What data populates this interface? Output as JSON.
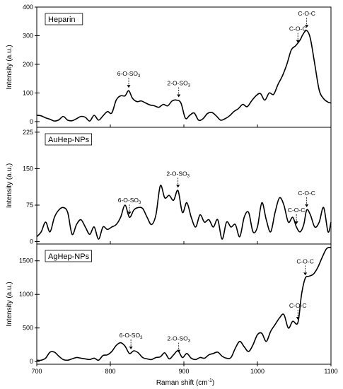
{
  "chart_data": {
    "type": "line",
    "xlabel_main": "Raman shift (cm",
    "xlabel_sup": "-1",
    "xlabel_end": ")",
    "xlim": [
      700,
      1100
    ],
    "xticks": [
      700,
      800,
      900,
      1000,
      1100
    ],
    "panels": [
      {
        "name": "Heparin",
        "ylabel": "Intensity (a.u.)",
        "ylim": [
          -20,
          400
        ],
        "yticks": [
          0,
          100,
          200,
          300,
          400
        ],
        "annotations": [
          {
            "main": "6-O-SO",
            "sub": "3",
            "x": 825,
            "y": 108
          },
          {
            "main": "2-O-SO",
            "sub": "3",
            "x": 893,
            "y": 75
          },
          {
            "main": "C-O-C",
            "sub": "",
            "x": 1055,
            "y": 265
          },
          {
            "main": "C-O-C",
            "sub": "",
            "x": 1067,
            "y": 318
          }
        ],
        "x": [
          700,
          706,
          712,
          718,
          724,
          730,
          736,
          742,
          748,
          754,
          760,
          766,
          772,
          778,
          784,
          790,
          796,
          802,
          808,
          814,
          820,
          825,
          830,
          836,
          842,
          848,
          854,
          860,
          866,
          872,
          878,
          884,
          890,
          896,
          902,
          908,
          914,
          920,
          926,
          932,
          938,
          944,
          950,
          956,
          962,
          968,
          974,
          980,
          986,
          992,
          998,
          1004,
          1010,
          1016,
          1022,
          1028,
          1034,
          1040,
          1046,
          1052,
          1058,
          1062,
          1067,
          1072,
          1078,
          1084,
          1090,
          1096,
          1100
        ],
        "y": [
          22,
          20,
          13,
          8,
          2,
          6,
          18,
          5,
          3,
          10,
          18,
          15,
          2,
          22,
          5,
          20,
          35,
          30,
          75,
          90,
          90,
          108,
          82,
          70,
          72,
          65,
          58,
          55,
          50,
          60,
          55,
          72,
          75,
          65,
          12,
          22,
          30,
          5,
          10,
          28,
          32,
          20,
          5,
          10,
          20,
          35,
          45,
          60,
          52,
          72,
          90,
          98,
          75,
          100,
          95,
          130,
          160,
          200,
          250,
          265,
          285,
          305,
          318,
          290,
          200,
          110,
          80,
          68,
          65
        ]
      },
      {
        "name": "AuHep-NPs",
        "ylabel": "Intensity (a.u.)",
        "ylim": [
          -5,
          235
        ],
        "yticks": [
          0,
          75,
          150,
          225
        ],
        "annotations": [
          {
            "main": "6-O-SO",
            "sub": "3",
            "x": 826,
            "y": 50
          },
          {
            "main": "2-O-SO",
            "sub": "3",
            "x": 892,
            "y": 105
          },
          {
            "main": "C-O-C",
            "sub": "",
            "x": 1053,
            "y": 30
          },
          {
            "main": "C-O-C",
            "sub": "",
            "x": 1067,
            "y": 65
          }
        ],
        "x": [
          700,
          706,
          712,
          718,
          724,
          730,
          736,
          742,
          748,
          754,
          760,
          766,
          772,
          778,
          784,
          790,
          796,
          802,
          808,
          814,
          820,
          826,
          832,
          838,
          844,
          850,
          856,
          862,
          868,
          874,
          880,
          886,
          892,
          898,
          904,
          910,
          916,
          922,
          928,
          934,
          940,
          946,
          952,
          958,
          964,
          970,
          976,
          982,
          988,
          994,
          1000,
          1006,
          1012,
          1018,
          1024,
          1030,
          1036,
          1042,
          1048,
          1053,
          1058,
          1063,
          1067,
          1072,
          1078,
          1084,
          1090,
          1096,
          1100
        ],
        "y": [
          10,
          20,
          40,
          20,
          50,
          65,
          70,
          60,
          15,
          35,
          45,
          30,
          15,
          30,
          5,
          30,
          25,
          30,
          35,
          50,
          75,
          50,
          65,
          70,
          68,
          50,
          35,
          55,
          115,
          90,
          95,
          85,
          105,
          60,
          80,
          50,
          30,
          55,
          40,
          45,
          30,
          45,
          5,
          40,
          30,
          35,
          10,
          50,
          60,
          20,
          30,
          80,
          45,
          20,
          60,
          90,
          75,
          40,
          50,
          30,
          20,
          35,
          65,
          55,
          30,
          40,
          70,
          20,
          40
        ]
      },
      {
        "name": "AgHep-NPs",
        "ylabel": "Intensity (a.u.)",
        "ylim": [
          -40,
          1750
        ],
        "yticks": [
          0,
          500,
          1000,
          1500
        ],
        "annotations": [
          {
            "main": "6-O-SO",
            "sub": "3",
            "x": 828,
            "y": 140
          },
          {
            "main": "2-O-SO",
            "sub": "3",
            "x": 893,
            "y": 90
          },
          {
            "main": "C-O-C",
            "sub": "",
            "x": 1055,
            "y": 580
          },
          {
            "main": "C-O-C",
            "sub": "",
            "x": 1065,
            "y": 1240
          }
        ],
        "x": [
          700,
          706,
          712,
          718,
          724,
          730,
          736,
          742,
          748,
          754,
          760,
          766,
          772,
          778,
          784,
          790,
          796,
          802,
          808,
          814,
          820,
          826,
          832,
          838,
          844,
          850,
          856,
          862,
          868,
          874,
          880,
          886,
          892,
          898,
          904,
          910,
          916,
          922,
          928,
          934,
          940,
          946,
          952,
          958,
          964,
          970,
          976,
          982,
          988,
          994,
          1000,
          1006,
          1012,
          1018,
          1024,
          1030,
          1036,
          1042,
          1048,
          1055,
          1060,
          1065,
          1070,
          1076,
          1082,
          1088,
          1094,
          1100
        ],
        "y": [
          20,
          20,
          50,
          140,
          140,
          80,
          30,
          20,
          40,
          60,
          50,
          40,
          30,
          50,
          20,
          90,
          100,
          150,
          240,
          280,
          230,
          120,
          160,
          130,
          60,
          40,
          30,
          60,
          70,
          130,
          40,
          100,
          160,
          60,
          120,
          50,
          30,
          60,
          50,
          100,
          120,
          140,
          80,
          50,
          60,
          200,
          300,
          220,
          150,
          250,
          400,
          420,
          300,
          450,
          550,
          650,
          700,
          500,
          600,
          580,
          1000,
          1240,
          1270,
          1300,
          1400,
          1550,
          1680,
          1700
        ]
      }
    ]
  }
}
